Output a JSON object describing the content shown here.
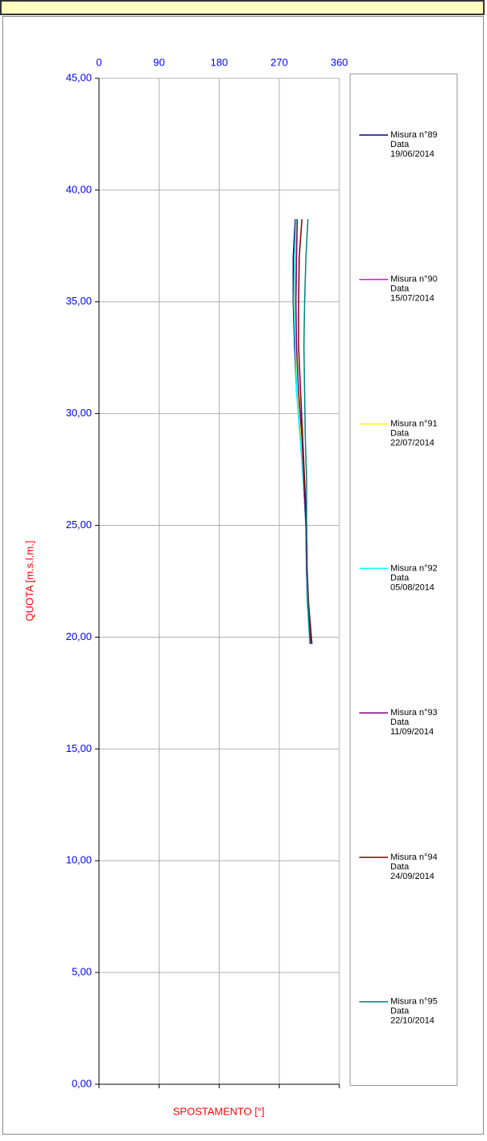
{
  "chart_data": {
    "type": "line",
    "x_label": "SPOSTAMENTO [°]",
    "y_label": "QUOTA [m.s.l.m.]",
    "xlim": [
      0,
      360
    ],
    "xticks": [
      0,
      90,
      180,
      270,
      360
    ],
    "ylim": [
      0,
      45
    ],
    "yticks": [
      {
        "value": 0,
        "label": "0,00"
      },
      {
        "value": 5,
        "label": "5,00"
      },
      {
        "value": 10,
        "label": "10,00"
      },
      {
        "value": 15,
        "label": "15,00"
      },
      {
        "value": 20,
        "label": "20,00"
      },
      {
        "value": 25,
        "label": "25,00"
      },
      {
        "value": 30,
        "label": "30,00"
      },
      {
        "value": 35,
        "label": "35,00"
      },
      {
        "value": 40,
        "label": "40,00"
      },
      {
        "value": 45,
        "label": "45,00"
      }
    ],
    "grid": true,
    "y": [
      38.7,
      37,
      35,
      33,
      31,
      29,
      27,
      25,
      23,
      21.5,
      19.7
    ],
    "series": [
      {
        "name": "Misura n°89",
        "date_label": "Data",
        "date": "19/06/2014",
        "color": "#000080",
        "values": [
          294,
          291,
          291,
          293,
          296,
          302,
          306,
          310,
          311,
          312,
          318
        ]
      },
      {
        "name": "Misura n°90",
        "date_label": "Data",
        "date": "15/07/2014",
        "color": "#ff00ff",
        "values": [
          297,
          295,
          294,
          295,
          298,
          303,
          307,
          310,
          311,
          313,
          318
        ]
      },
      {
        "name": "Misura n°91",
        "date_label": "Data",
        "date": "22/07/2014",
        "color": "#ffff00",
        "values": [
          296,
          294,
          293,
          295,
          298,
          303,
          307,
          310,
          311,
          313,
          317
        ]
      },
      {
        "name": "Misura n°92",
        "date_label": "Data",
        "date": "05/08/2014",
        "color": "#00ffff",
        "values": [
          295,
          293,
          292,
          294,
          296,
          301,
          306,
          310,
          311,
          312,
          316
        ]
      },
      {
        "name": "Misura n°93",
        "date_label": "Data",
        "date": "11/09/2014",
        "color": "#800080",
        "values": [
          297,
          296,
          295,
          296,
          299,
          304,
          307,
          310,
          311,
          313,
          318
        ]
      },
      {
        "name": "Misura n°94",
        "date_label": "Data",
        "date": "24/09/2014",
        "color": "#800000",
        "values": [
          304,
          300,
          299,
          299,
          302,
          305,
          308,
          311,
          312,
          314,
          319
        ]
      },
      {
        "name": "Misura n°95",
        "date_label": "Data",
        "date": "22/10/2014",
        "color": "#008080",
        "values": [
          313,
          310,
          308,
          307,
          308,
          309,
          311,
          311,
          312,
          313,
          316
        ]
      }
    ]
  }
}
